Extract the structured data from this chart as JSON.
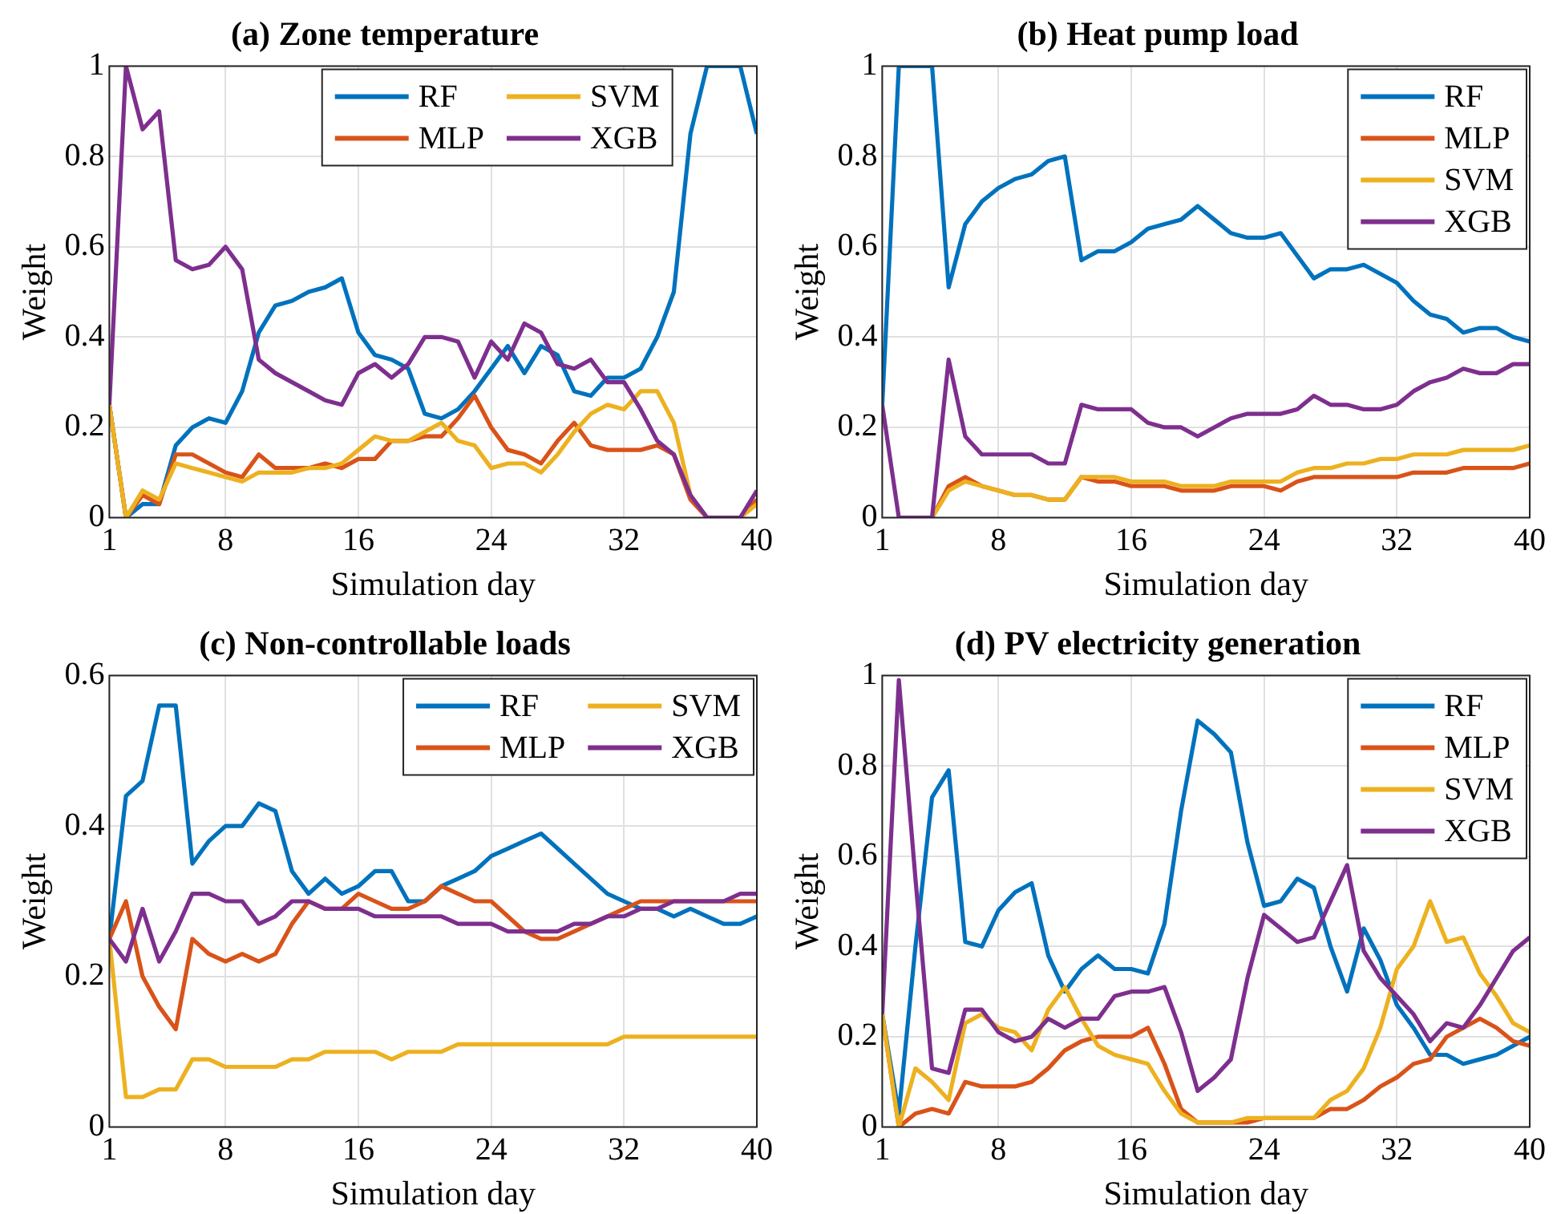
{
  "chart_data": [
    {
      "type": "line",
      "title": "(a) Zone temperature",
      "xlabel": "Simulation day",
      "ylabel": "Weight",
      "x": [
        1,
        2,
        3,
        4,
        5,
        6,
        7,
        8,
        9,
        10,
        11,
        12,
        13,
        14,
        15,
        16,
        17,
        18,
        19,
        20,
        21,
        22,
        23,
        24,
        25,
        26,
        27,
        28,
        29,
        30,
        31,
        32,
        33,
        34,
        35,
        36,
        37,
        38,
        39,
        40
      ],
      "xlim": [
        1,
        40
      ],
      "xticks": [
        1,
        8,
        16,
        24,
        32,
        40
      ],
      "ylim": [
        0,
        1
      ],
      "yticks": [
        0,
        0.2,
        0.4,
        0.6,
        0.8,
        1
      ],
      "grid": true,
      "legend": "top",
      "series": [
        {
          "name": "RF",
          "color": "#0072bd",
          "values": [
            0.25,
            0.0,
            0.03,
            0.03,
            0.16,
            0.2,
            0.22,
            0.21,
            0.28,
            0.41,
            0.47,
            0.48,
            0.5,
            0.51,
            0.53,
            0.41,
            0.36,
            0.35,
            0.33,
            0.23,
            0.22,
            0.24,
            0.28,
            0.33,
            0.38,
            0.32,
            0.38,
            0.36,
            0.28,
            0.27,
            0.31,
            0.31,
            0.33,
            0.4,
            0.5,
            0.85,
            1.0,
            1.0,
            1.0,
            0.85
          ]
        },
        {
          "name": "MLP",
          "color": "#d95319",
          "values": [
            0.25,
            0.0,
            0.05,
            0.03,
            0.14,
            0.14,
            0.12,
            0.1,
            0.09,
            0.14,
            0.11,
            0.11,
            0.11,
            0.12,
            0.11,
            0.13,
            0.13,
            0.17,
            0.17,
            0.18,
            0.18,
            0.22,
            0.27,
            0.2,
            0.15,
            0.14,
            0.12,
            0.17,
            0.21,
            0.16,
            0.15,
            0.15,
            0.15,
            0.16,
            0.14,
            0.04,
            0.0,
            0.0,
            0.0,
            0.04
          ]
        },
        {
          "name": "SVM",
          "color": "#edb120",
          "values": [
            0.25,
            0.0,
            0.06,
            0.04,
            0.12,
            0.11,
            0.1,
            0.09,
            0.08,
            0.1,
            0.1,
            0.1,
            0.11,
            0.11,
            0.12,
            0.15,
            0.18,
            0.17,
            0.17,
            0.19,
            0.21,
            0.17,
            0.16,
            0.11,
            0.12,
            0.12,
            0.1,
            0.14,
            0.19,
            0.23,
            0.25,
            0.24,
            0.28,
            0.28,
            0.21,
            0.05,
            0.0,
            0.0,
            0.0,
            0.03
          ]
        },
        {
          "name": "XGB",
          "color": "#7e2f8e",
          "values": [
            0.25,
            1.0,
            0.86,
            0.9,
            0.57,
            0.55,
            0.56,
            0.6,
            0.55,
            0.35,
            0.32,
            0.3,
            0.28,
            0.26,
            0.25,
            0.32,
            0.34,
            0.31,
            0.34,
            0.4,
            0.4,
            0.39,
            0.31,
            0.39,
            0.35,
            0.43,
            0.41,
            0.34,
            0.33,
            0.35,
            0.3,
            0.3,
            0.24,
            0.17,
            0.14,
            0.05,
            0.0,
            0.0,
            0.0,
            0.06
          ]
        }
      ]
    },
    {
      "type": "line",
      "title": "(b) Heat pump load",
      "xlabel": "Simulation day",
      "ylabel": "Weight",
      "x": [
        1,
        2,
        3,
        4,
        5,
        6,
        7,
        8,
        9,
        10,
        11,
        12,
        13,
        14,
        15,
        16,
        17,
        18,
        19,
        20,
        21,
        22,
        23,
        24,
        25,
        26,
        27,
        28,
        29,
        30,
        31,
        32,
        33,
        34,
        35,
        36,
        37,
        38,
        39,
        40
      ],
      "xlim": [
        1,
        40
      ],
      "xticks": [
        1,
        8,
        16,
        24,
        32,
        40
      ],
      "ylim": [
        0,
        1
      ],
      "yticks": [
        0,
        0.2,
        0.4,
        0.6,
        0.8,
        1
      ],
      "grid": true,
      "legend": "top right",
      "series": [
        {
          "name": "RF",
          "color": "#0072bd",
          "values": [
            0.25,
            1.0,
            1.0,
            1.0,
            0.51,
            0.65,
            0.7,
            0.73,
            0.75,
            0.76,
            0.79,
            0.8,
            0.57,
            0.59,
            0.59,
            0.61,
            0.64,
            0.65,
            0.66,
            0.69,
            0.66,
            0.63,
            0.62,
            0.62,
            0.63,
            0.58,
            0.53,
            0.55,
            0.55,
            0.56,
            0.54,
            0.52,
            0.48,
            0.45,
            0.44,
            0.41,
            0.42,
            0.42,
            0.4,
            0.39
          ]
        },
        {
          "name": "MLP",
          "color": "#d95319",
          "values": [
            null,
            null,
            0.0,
            0.0,
            0.07,
            0.09,
            0.07,
            0.06,
            0.05,
            0.05,
            0.04,
            0.04,
            0.09,
            0.08,
            0.08,
            0.07,
            0.07,
            0.07,
            0.06,
            0.06,
            0.06,
            0.07,
            0.07,
            0.07,
            0.06,
            0.08,
            0.09,
            0.09,
            0.09,
            0.09,
            0.09,
            0.09,
            0.1,
            0.1,
            0.1,
            0.11,
            0.11,
            0.11,
            0.11,
            0.12
          ]
        },
        {
          "name": "SVM",
          "color": "#edb120",
          "values": [
            null,
            null,
            0.0,
            0.0,
            0.06,
            0.08,
            0.07,
            0.06,
            0.05,
            0.05,
            0.04,
            0.04,
            0.09,
            0.09,
            0.09,
            0.08,
            0.08,
            0.08,
            0.07,
            0.07,
            0.07,
            0.08,
            0.08,
            0.08,
            0.08,
            0.1,
            0.11,
            0.11,
            0.12,
            0.12,
            0.13,
            0.13,
            0.14,
            0.14,
            0.14,
            0.15,
            0.15,
            0.15,
            0.15,
            0.16
          ]
        },
        {
          "name": "XGB",
          "color": "#7e2f8e",
          "values": [
            0.25,
            0.0,
            0.0,
            0.0,
            0.35,
            0.18,
            0.14,
            0.14,
            0.14,
            0.14,
            0.12,
            0.12,
            0.25,
            0.24,
            0.24,
            0.24,
            0.21,
            0.2,
            0.2,
            0.18,
            0.2,
            0.22,
            0.23,
            0.23,
            0.23,
            0.24,
            0.27,
            0.25,
            0.25,
            0.24,
            0.24,
            0.25,
            0.28,
            0.3,
            0.31,
            0.33,
            0.32,
            0.32,
            0.34,
            0.34
          ]
        }
      ]
    },
    {
      "type": "line",
      "title": "(c) Non-controllable loads",
      "xlabel": "Simulation day",
      "ylabel": "Weight",
      "x": [
        1,
        2,
        3,
        4,
        5,
        6,
        7,
        8,
        9,
        10,
        11,
        12,
        13,
        14,
        15,
        16,
        17,
        18,
        19,
        20,
        21,
        22,
        23,
        24,
        25,
        26,
        27,
        28,
        29,
        30,
        31,
        32,
        33,
        34,
        35,
        36,
        37,
        38,
        39,
        40
      ],
      "xlim": [
        1,
        40
      ],
      "xticks": [
        1,
        8,
        16,
        24,
        32,
        40
      ],
      "ylim": [
        0,
        0.6
      ],
      "yticks": [
        0,
        0.2,
        0.4,
        0.6
      ],
      "grid": true,
      "legend": "top right",
      "series": [
        {
          "name": "RF",
          "color": "#0072bd",
          "values": [
            0.25,
            0.44,
            0.46,
            0.56,
            0.56,
            0.35,
            0.38,
            0.4,
            0.4,
            0.43,
            0.42,
            0.34,
            0.31,
            0.33,
            0.31,
            0.32,
            0.34,
            0.34,
            0.3,
            0.3,
            0.32,
            0.33,
            0.34,
            0.36,
            0.37,
            0.38,
            0.39,
            0.37,
            0.35,
            0.33,
            0.31,
            0.3,
            0.29,
            0.29,
            0.28,
            0.29,
            0.28,
            0.27,
            0.27,
            0.28
          ]
        },
        {
          "name": "MLP",
          "color": "#d95319",
          "values": [
            0.25,
            0.3,
            0.2,
            0.16,
            0.13,
            0.25,
            0.23,
            0.22,
            0.23,
            0.22,
            0.23,
            0.27,
            0.3,
            0.29,
            0.29,
            0.31,
            0.3,
            0.29,
            0.29,
            0.3,
            0.32,
            0.31,
            0.3,
            0.3,
            0.28,
            0.26,
            0.25,
            0.25,
            0.26,
            0.27,
            0.28,
            0.29,
            0.3,
            0.3,
            0.3,
            0.3,
            0.3,
            0.3,
            0.3,
            0.3
          ]
        },
        {
          "name": "SVM",
          "color": "#edb120",
          "values": [
            0.25,
            0.04,
            0.04,
            0.05,
            0.05,
            0.09,
            0.09,
            0.08,
            0.08,
            0.08,
            0.08,
            0.09,
            0.09,
            0.1,
            0.1,
            0.1,
            0.1,
            0.09,
            0.1,
            0.1,
            0.1,
            0.11,
            0.11,
            0.11,
            0.11,
            0.11,
            0.11,
            0.11,
            0.11,
            0.11,
            0.11,
            0.12,
            0.12,
            0.12,
            0.12,
            0.12,
            0.12,
            0.12,
            0.12,
            0.12
          ]
        },
        {
          "name": "XGB",
          "color": "#7e2f8e",
          "values": [
            0.25,
            0.22,
            0.29,
            0.22,
            0.26,
            0.31,
            0.31,
            0.3,
            0.3,
            0.27,
            0.28,
            0.3,
            0.3,
            0.29,
            0.29,
            0.29,
            0.28,
            0.28,
            0.28,
            0.28,
            0.28,
            0.27,
            0.27,
            0.27,
            0.26,
            0.26,
            0.26,
            0.26,
            0.27,
            0.27,
            0.28,
            0.28,
            0.29,
            0.29,
            0.3,
            0.3,
            0.3,
            0.3,
            0.31,
            0.31
          ]
        }
      ]
    },
    {
      "type": "line",
      "title": "(d) PV electricity generation",
      "xlabel": "Simulation day",
      "ylabel": "Weight",
      "x": [
        1,
        2,
        3,
        4,
        5,
        6,
        7,
        8,
        9,
        10,
        11,
        12,
        13,
        14,
        15,
        16,
        17,
        18,
        19,
        20,
        21,
        22,
        23,
        24,
        25,
        26,
        27,
        28,
        29,
        30,
        31,
        32,
        33,
        34,
        35,
        36,
        37,
        38,
        39,
        40
      ],
      "xlim": [
        1,
        40
      ],
      "xticks": [
        1,
        8,
        16,
        24,
        32,
        40
      ],
      "ylim": [
        0,
        1
      ],
      "yticks": [
        0,
        0.2,
        0.4,
        0.6,
        0.8,
        1
      ],
      "grid": true,
      "legend": "top right",
      "series": [
        {
          "name": "RF",
          "color": "#0072bd",
          "values": [
            0.25,
            0.03,
            0.4,
            0.73,
            0.79,
            0.41,
            0.4,
            0.48,
            0.52,
            0.54,
            0.38,
            0.3,
            0.35,
            0.38,
            0.35,
            0.35,
            0.34,
            0.45,
            0.7,
            0.9,
            0.87,
            0.83,
            0.63,
            0.49,
            0.5,
            0.55,
            0.53,
            0.4,
            0.3,
            0.44,
            0.37,
            0.27,
            0.22,
            0.16,
            0.16,
            0.14,
            0.15,
            0.16,
            0.18,
            0.2
          ]
        },
        {
          "name": "MLP",
          "color": "#d95319",
          "values": [
            0.25,
            0.0,
            0.03,
            0.04,
            0.03,
            0.1,
            0.09,
            0.09,
            0.09,
            0.1,
            0.13,
            0.17,
            0.19,
            0.2,
            0.2,
            0.2,
            0.22,
            0.14,
            0.04,
            0.01,
            0.01,
            0.01,
            0.01,
            0.02,
            0.02,
            0.02,
            0.02,
            0.04,
            0.04,
            0.06,
            0.09,
            0.11,
            0.14,
            0.15,
            0.2,
            0.22,
            0.24,
            0.22,
            0.19,
            0.18
          ]
        },
        {
          "name": "SVM",
          "color": "#edb120",
          "values": [
            0.25,
            0.0,
            0.13,
            0.1,
            0.06,
            0.23,
            0.25,
            0.22,
            0.21,
            0.17,
            0.26,
            0.31,
            0.24,
            0.18,
            0.16,
            0.15,
            0.14,
            0.08,
            0.03,
            0.01,
            0.01,
            0.01,
            0.02,
            0.02,
            0.02,
            0.02,
            0.02,
            0.06,
            0.08,
            0.13,
            0.22,
            0.35,
            0.4,
            0.5,
            0.41,
            0.42,
            0.34,
            0.29,
            0.23,
            0.21
          ]
        },
        {
          "name": "XGB",
          "color": "#7e2f8e",
          "values": [
            0.25,
            0.99,
            0.55,
            0.13,
            0.12,
            0.26,
            0.26,
            0.21,
            0.19,
            0.2,
            0.24,
            0.22,
            0.24,
            0.24,
            0.29,
            0.3,
            0.3,
            0.31,
            0.21,
            0.08,
            0.11,
            0.15,
            0.33,
            0.47,
            0.44,
            0.41,
            0.42,
            0.5,
            0.58,
            0.39,
            0.33,
            0.29,
            0.25,
            0.19,
            0.23,
            0.22,
            0.27,
            0.33,
            0.39,
            0.42
          ]
        }
      ]
    }
  ]
}
